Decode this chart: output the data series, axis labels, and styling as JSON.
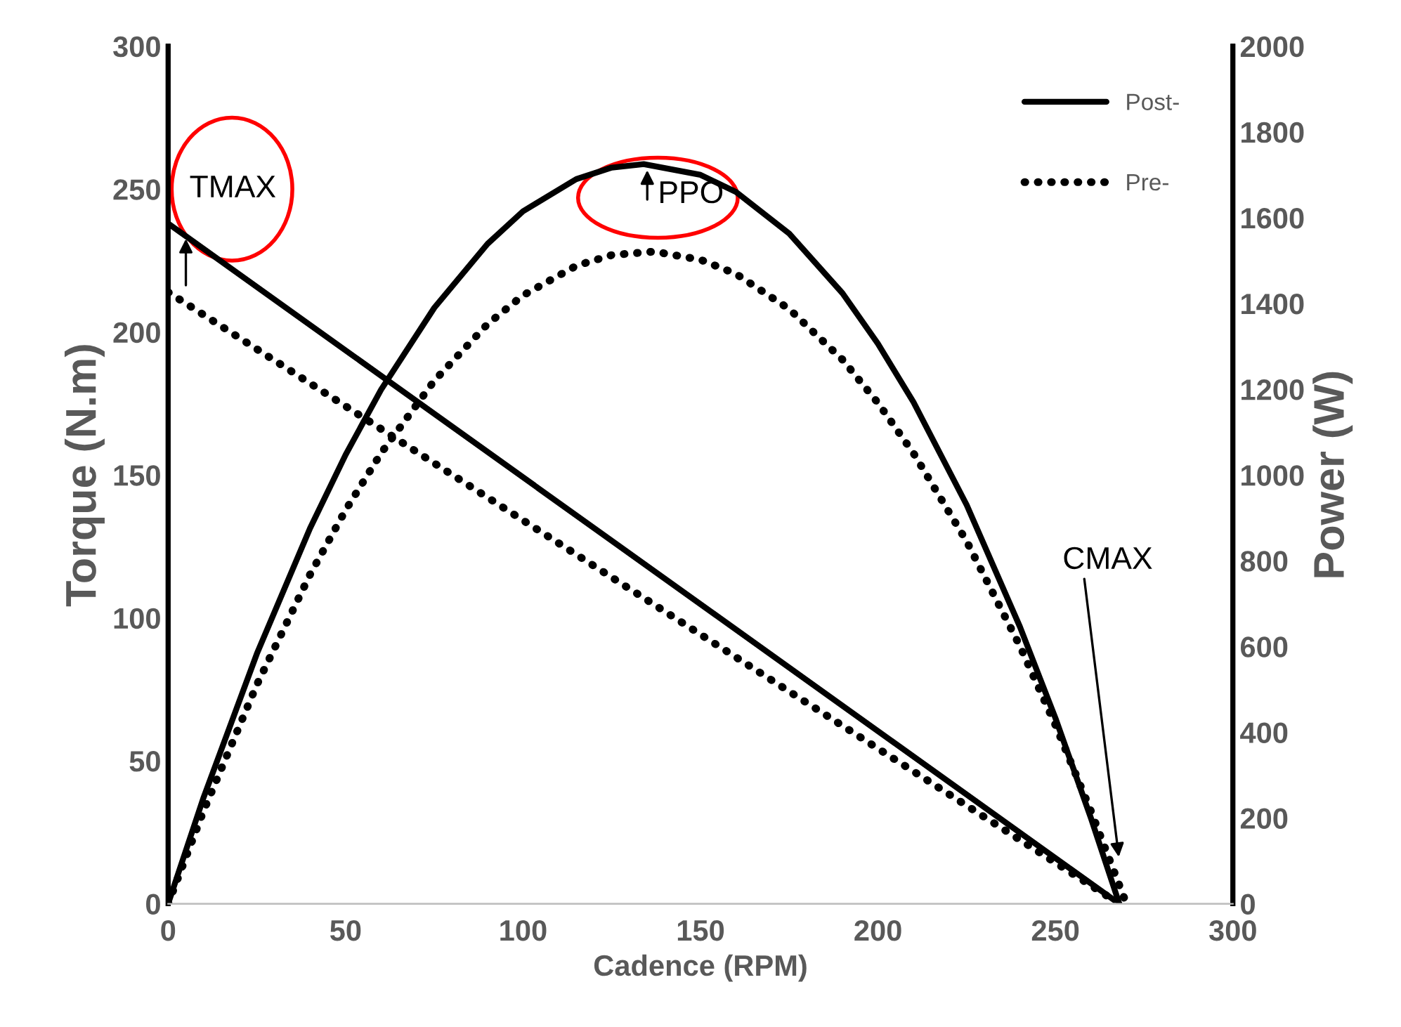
{
  "chart_data": {
    "type": "line",
    "xlabel": "Cadence (RPM)",
    "ylabel": "Torque (N.m)",
    "y2label": "Power (W)",
    "xlim": [
      0,
      300
    ],
    "xticks": [
      0,
      50,
      100,
      150,
      200,
      250,
      300
    ],
    "ylim": [
      0,
      300
    ],
    "yticks": [
      0,
      50,
      100,
      150,
      200,
      250,
      300
    ],
    "y2lim": [
      0,
      2000
    ],
    "y2ticks": [
      0,
      200,
      400,
      600,
      800,
      1000,
      1200,
      1400,
      1600,
      1800,
      2000
    ],
    "series": [
      {
        "name": "Post-",
        "color": "#000000",
        "line_style": "solid",
        "x": [
          0,
          268
        ],
        "values": [
          238,
          0
        ]
      },
      {
        "name": "Pre-",
        "color": "#000000",
        "line_style": "dotted",
        "x": [
          0,
          268
        ],
        "values": [
          214,
          0
        ]
      },
      {
        "color": "#000000",
        "line_style": "solid",
        "axis": "y2",
        "x": [
          0,
          10,
          25,
          40,
          50,
          60,
          75,
          90,
          100,
          115,
          125,
          134,
          150,
          160,
          175,
          190,
          200,
          210,
          225,
          240,
          250,
          260,
          268
        ],
        "values": [
          0,
          248,
          583,
          876,
          1047,
          1199,
          1390,
          1539,
          1615,
          1690,
          1717,
          1725,
          1700,
          1660,
          1563,
          1424,
          1306,
          1170,
          930,
          646,
          433,
          200,
          0
        ]
      },
      {
        "color": "#000000",
        "line_style": "dotted",
        "axis": "y2",
        "x": [
          0,
          10,
          25,
          40,
          50,
          60,
          75,
          90,
          100,
          115,
          125,
          137,
          150,
          160,
          175,
          190,
          200,
          210,
          225,
          240,
          250,
          260,
          270
        ],
        "values": [
          0,
          217,
          511,
          768,
          918,
          1051,
          1220,
          1352,
          1419,
          1488,
          1513,
          1521,
          1502,
          1469,
          1387,
          1269,
          1168,
          1051,
          845,
          601,
          417,
          216,
          0
        ]
      }
    ],
    "annotations": [
      {
        "text": "TMAX",
        "x": 5,
        "y": 234
      },
      {
        "text": "PPO",
        "x": 135,
        "y": 258
      },
      {
        "text": "CMAX",
        "x": 268,
        "y": 15
      }
    ],
    "legend": "top right",
    "grid": false
  }
}
